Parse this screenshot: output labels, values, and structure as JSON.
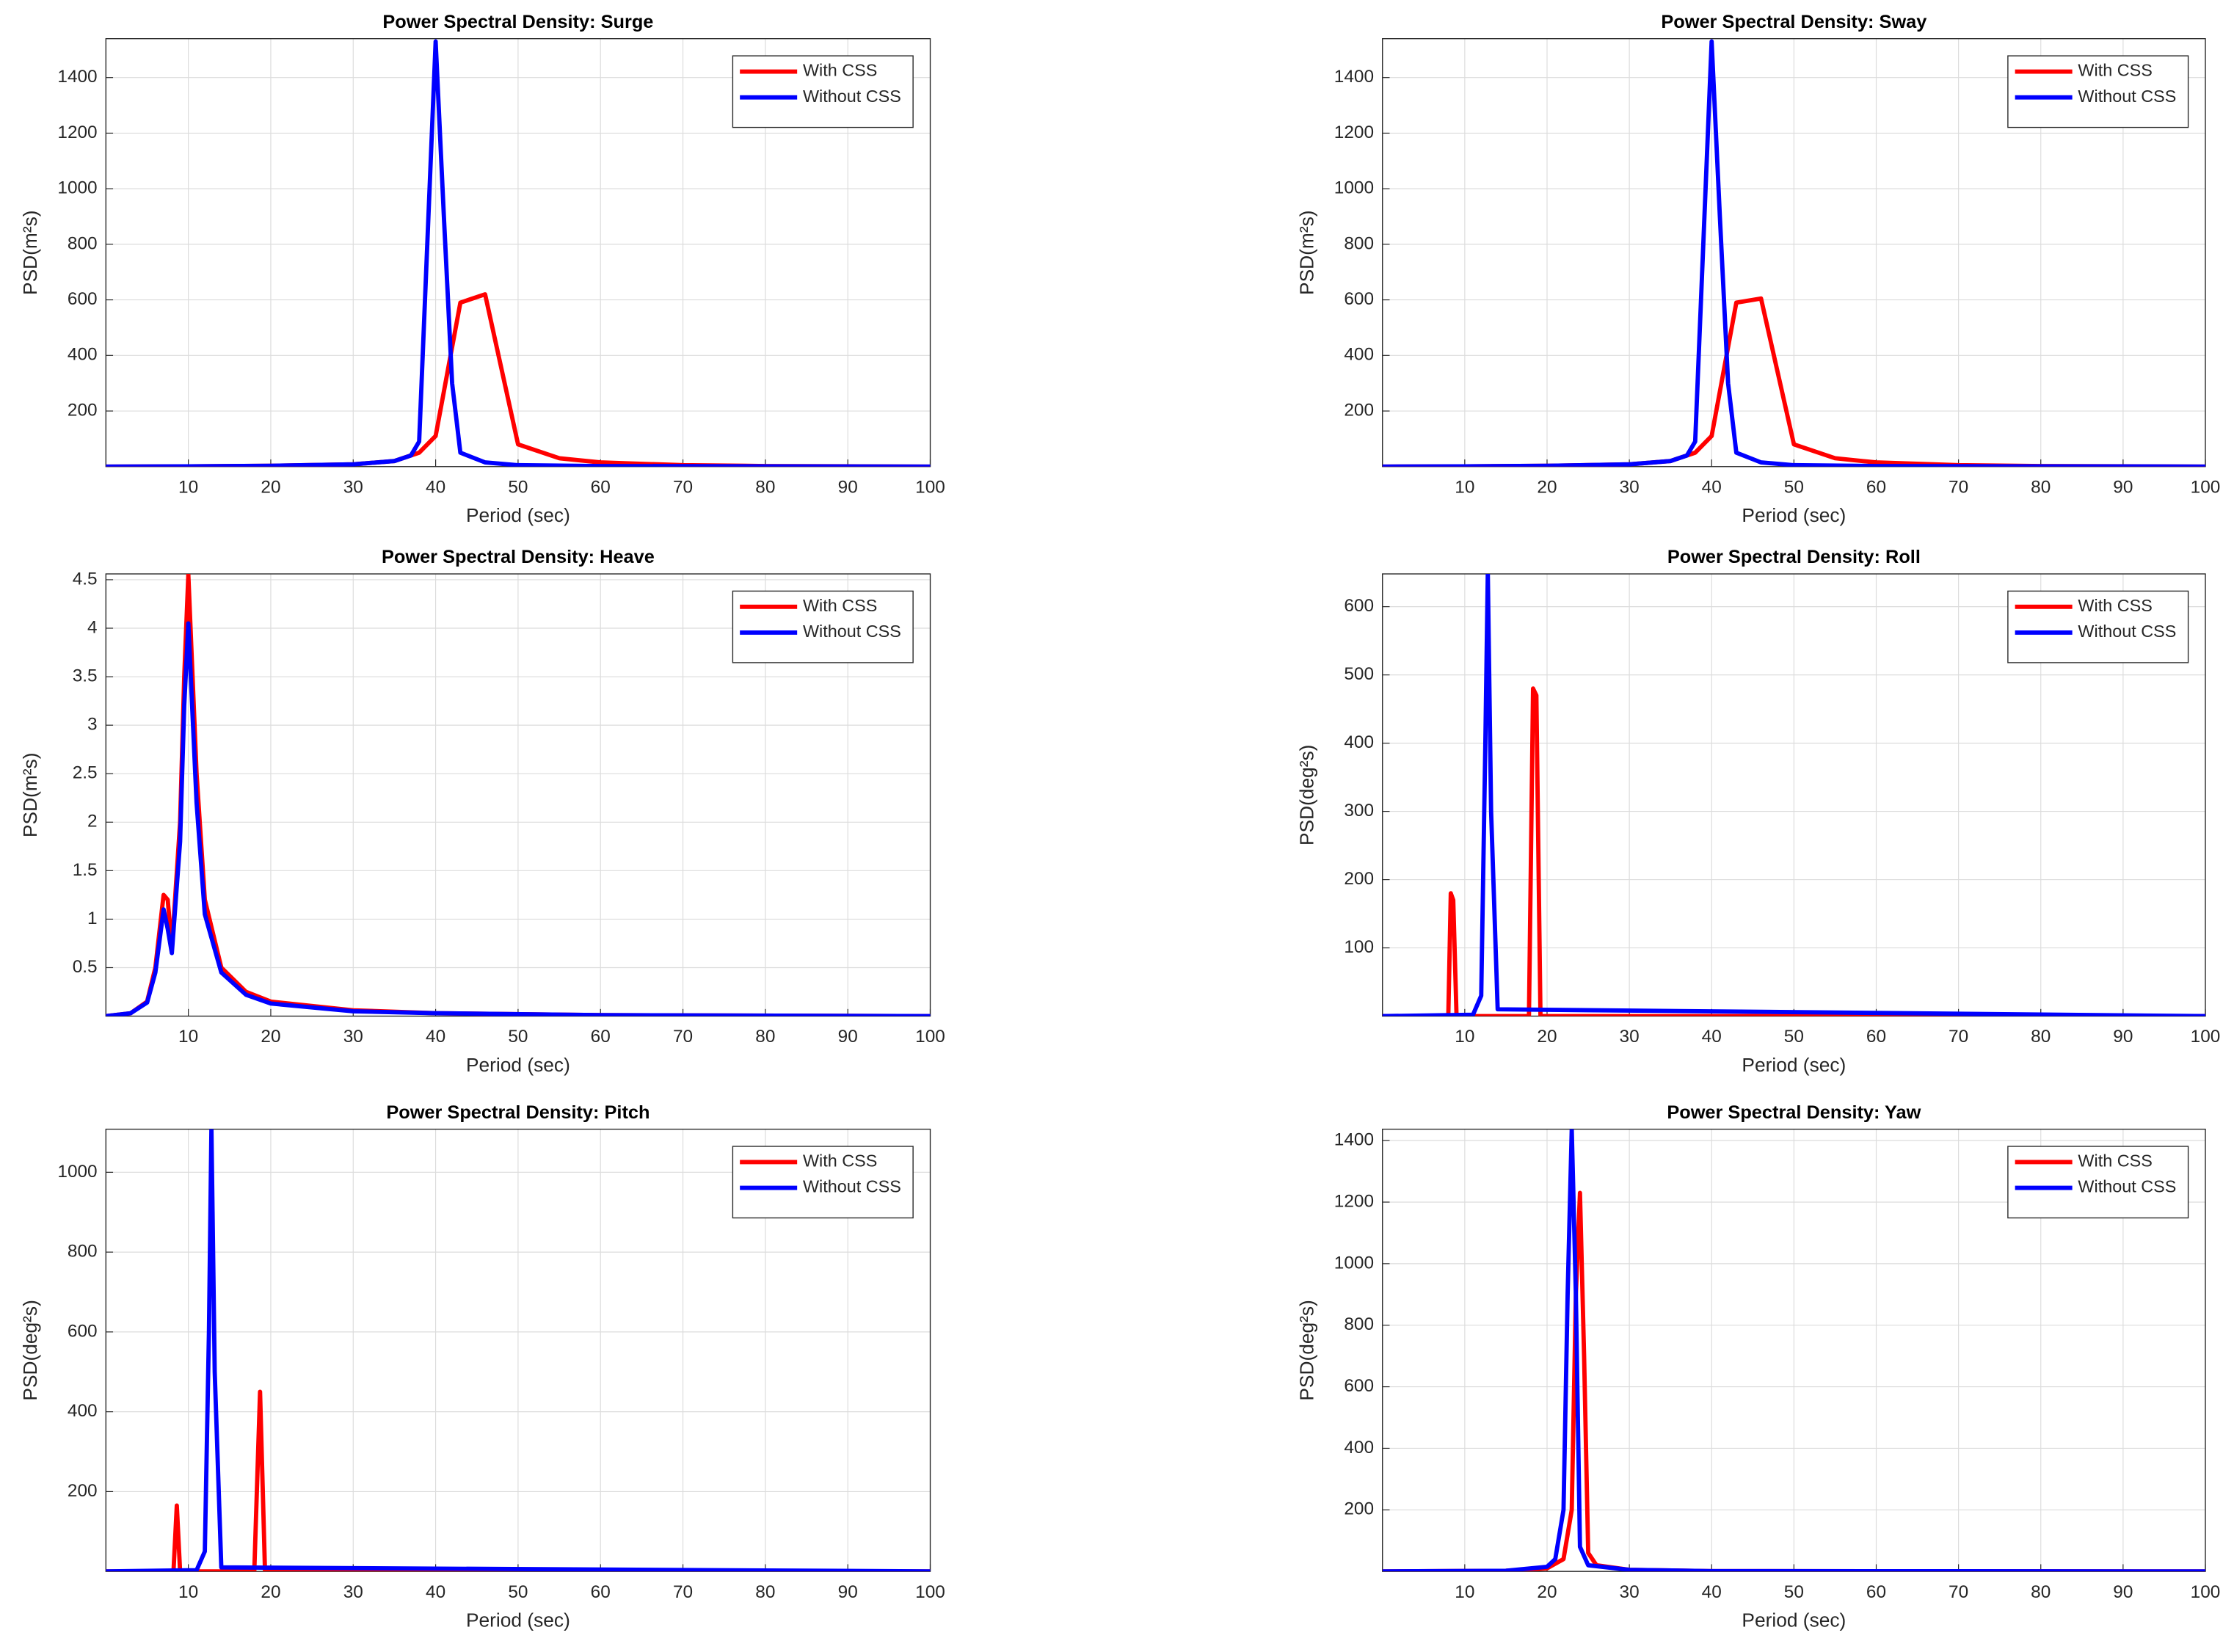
{
  "chart_data": [
    {
      "type": "line",
      "title": "Power Spectral Density: Surge",
      "xlabel": "Period (sec)",
      "ylabel": "PSD(m²s)",
      "xlim": [
        0,
        100
      ],
      "xticks": [
        10,
        20,
        30,
        40,
        50,
        60,
        70,
        80,
        90,
        100
      ],
      "ylim": [
        0,
        1540
      ],
      "yticks": [
        200,
        400,
        600,
        800,
        1000,
        1200,
        1400
      ],
      "grid": true,
      "legend": "upper-right",
      "series": [
        {
          "name": "With CSS",
          "color": "#ff0000",
          "x": [
            0,
            10,
            20,
            30,
            35,
            38,
            40,
            43,
            46,
            50,
            55,
            60,
            70,
            80,
            100
          ],
          "values": [
            0,
            1,
            3,
            8,
            20,
            50,
            110,
            590,
            620,
            80,
            30,
            15,
            5,
            2,
            0
          ]
        },
        {
          "name": "Without CSS",
          "color": "#0000ff",
          "x": [
            0,
            10,
            20,
            30,
            35,
            37,
            38,
            40,
            41,
            42,
            43,
            46,
            50,
            60,
            80,
            100
          ],
          "values": [
            0,
            1,
            3,
            8,
            20,
            40,
            90,
            1530,
            900,
            300,
            50,
            15,
            5,
            2,
            1,
            0
          ]
        }
      ]
    },
    {
      "type": "line",
      "title": "Power Spectral Density: Sway",
      "xlabel": "Period (sec)",
      "ylabel": "PSD(m²s)",
      "xlim": [
        0,
        100
      ],
      "xticks": [
        10,
        20,
        30,
        40,
        50,
        60,
        70,
        80,
        90,
        100
      ],
      "ylim": [
        0,
        1540
      ],
      "yticks": [
        200,
        400,
        600,
        800,
        1000,
        1200,
        1400
      ],
      "grid": true,
      "legend": "upper-right",
      "series": [
        {
          "name": "With CSS",
          "color": "#ff0000",
          "x": [
            0,
            10,
            20,
            30,
            35,
            38,
            40,
            43,
            46,
            50,
            55,
            60,
            70,
            80,
            100
          ],
          "values": [
            0,
            1,
            3,
            8,
            20,
            50,
            110,
            590,
            605,
            80,
            30,
            15,
            5,
            2,
            0
          ]
        },
        {
          "name": "Without CSS",
          "color": "#0000ff",
          "x": [
            0,
            10,
            20,
            30,
            35,
            37,
            38,
            40,
            41,
            42,
            43,
            46,
            50,
            60,
            80,
            100
          ],
          "values": [
            0,
            1,
            3,
            8,
            20,
            40,
            90,
            1530,
            900,
            300,
            50,
            15,
            5,
            2,
            1,
            0
          ]
        }
      ]
    },
    {
      "type": "line",
      "title": "Power Spectral Density: Heave",
      "xlabel": "Period (sec)",
      "ylabel": "PSD(m²s)",
      "xlim": [
        0,
        100
      ],
      "xticks": [
        10,
        20,
        30,
        40,
        50,
        60,
        70,
        80,
        90,
        100
      ],
      "ylim": [
        0,
        4.56
      ],
      "yticks": [
        0.5,
        1,
        1.5,
        2,
        2.5,
        3,
        3.5,
        4,
        4.5
      ],
      "grid": true,
      "legend": "upper-right",
      "series": [
        {
          "name": "With CSS",
          "color": "#ff0000",
          "x": [
            0,
            3,
            5,
            6,
            7,
            7.5,
            8,
            9,
            9.5,
            10,
            11,
            12,
            14,
            17,
            20,
            30,
            40,
            60,
            100
          ],
          "values": [
            0,
            0.03,
            0.15,
            0.5,
            1.25,
            1.2,
            0.7,
            2,
            3.5,
            4.55,
            2.5,
            1.2,
            0.5,
            0.25,
            0.15,
            0.06,
            0.03,
            0.01,
            0
          ]
        },
        {
          "name": "Without CSS",
          "color": "#0000ff",
          "x": [
            0,
            3,
            5,
            6,
            7,
            7.5,
            8,
            9,
            9.5,
            10,
            11,
            12,
            14,
            17,
            20,
            30,
            40,
            60,
            100
          ],
          "values": [
            0,
            0.03,
            0.14,
            0.45,
            1.1,
            0.9,
            0.65,
            1.8,
            3.2,
            4.05,
            2.2,
            1.05,
            0.45,
            0.22,
            0.13,
            0.05,
            0.03,
            0.01,
            0
          ]
        }
      ]
    },
    {
      "type": "line",
      "title": "Power Spectral Density: Roll",
      "xlabel": "Period (sec)",
      "ylabel": "PSD(deg²s)",
      "xlim": [
        0,
        100
      ],
      "xticks": [
        10,
        20,
        30,
        40,
        50,
        60,
        70,
        80,
        90,
        100
      ],
      "ylim": [
        0,
        648
      ],
      "yticks": [
        100,
        200,
        300,
        400,
        500,
        600
      ],
      "grid": true,
      "legend": "upper-right",
      "series": [
        {
          "name": "With CSS",
          "color": "#ff0000",
          "x": [
            0,
            8,
            8.3,
            8.6,
            9,
            17.8,
            18.3,
            18.7,
            19.2,
            20,
            100
          ],
          "values": [
            0,
            0,
            180,
            170,
            0,
            0,
            480,
            470,
            0,
            0,
            0
          ]
        },
        {
          "name": "Without CSS",
          "color": "#0000ff",
          "x": [
            0,
            11,
            12,
            12.5,
            12.8,
            13.2,
            14,
            100
          ],
          "values": [
            0,
            2,
            30,
            400,
            650,
            300,
            10,
            0
          ]
        }
      ]
    },
    {
      "type": "line",
      "title": "Power Spectral Density: Pitch",
      "xlabel": "Period (sec)",
      "ylabel": "PSD(deg²s)",
      "xlim": [
        0,
        100
      ],
      "xticks": [
        10,
        20,
        30,
        40,
        50,
        60,
        70,
        80,
        90,
        100
      ],
      "ylim": [
        0,
        1108
      ],
      "yticks": [
        200,
        400,
        600,
        800,
        1000
      ],
      "grid": true,
      "legend": "upper-right",
      "series": [
        {
          "name": "With CSS",
          "color": "#ff0000",
          "x": [
            0,
            8.2,
            8.6,
            9,
            18,
            18.7,
            19.3,
            20,
            100
          ],
          "values": [
            0,
            0,
            165,
            0,
            0,
            450,
            0,
            0,
            0
          ]
        },
        {
          "name": "Without CSS",
          "color": "#0000ff",
          "x": [
            0,
            11,
            12,
            12.5,
            12.8,
            13.2,
            14,
            100
          ],
          "values": [
            0,
            3,
            50,
            600,
            1110,
            500,
            10,
            0
          ]
        }
      ]
    },
    {
      "type": "line",
      "title": "Power Spectral Density: Yaw",
      "xlabel": "Period (sec)",
      "ylabel": "PSD(deg²s)",
      "xlim": [
        0,
        100
      ],
      "xticks": [
        10,
        20,
        30,
        40,
        50,
        60,
        70,
        80,
        90,
        100
      ],
      "ylim": [
        0,
        1437
      ],
      "yticks": [
        200,
        400,
        600,
        800,
        1000,
        1200,
        1400
      ],
      "grid": true,
      "legend": "upper-right",
      "series": [
        {
          "name": "With CSS",
          "color": "#ff0000",
          "x": [
            0,
            15,
            20,
            22,
            23,
            23.5,
            24,
            24.5,
            25,
            26,
            30,
            40,
            100
          ],
          "values": [
            0,
            2,
            10,
            40,
            200,
            900,
            1230,
            700,
            60,
            20,
            5,
            1,
            0
          ]
        },
        {
          "name": "Without CSS",
          "color": "#0000ff",
          "x": [
            0,
            15,
            20,
            21,
            22,
            22.5,
            23,
            23.5,
            24,
            25,
            30,
            40,
            100
          ],
          "values": [
            0,
            2,
            15,
            40,
            200,
            900,
            1437,
            900,
            80,
            20,
            5,
            1,
            0
          ]
        }
      ]
    }
  ]
}
